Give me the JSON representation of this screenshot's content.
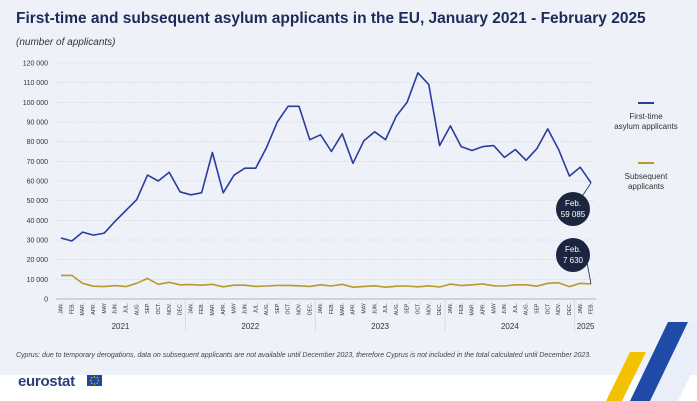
{
  "title": "First-time and subsequent asylum applicants in the EU, January 2021 - February 2025",
  "subtitle": "(number of applicants)",
  "footnote": "Cyprus: due to temporary derogations, data on subsequent applicants are not available until December 2023, therefore Cyprus is not included in the total calculated until December 2023.",
  "logo_text": "eurostat",
  "colors": {
    "first": "#2a3d9e",
    "subsequent": "#b89a2e",
    "callout": "#1c2540",
    "panel": "#eef1f8"
  },
  "chart_data": {
    "type": "line",
    "title": "First-time and subsequent asylum applicants in the EU, January 2021 - February 2025",
    "ylabel": "",
    "xlabel": "",
    "ylim": [
      0,
      120000
    ],
    "yticks": [
      "0",
      "10 000",
      "20 000",
      "30 000",
      "40 000",
      "50 000",
      "60 000",
      "70 000",
      "80 000",
      "90 000",
      "100 000",
      "110 000",
      "120 000"
    ],
    "grid": true,
    "legend_position": "right",
    "month_labels": [
      "JAN.",
      "FEB.",
      "MAR.",
      "APR.",
      "MAY",
      "JUN.",
      "JUL.",
      "AUG.",
      "SEP.",
      "OCT.",
      "NOV.",
      "DEC.",
      "JAN.",
      "FEB.",
      "MAR.",
      "APR.",
      "MAY",
      "JUN.",
      "JUL.",
      "AUG.",
      "SEP.",
      "OCT.",
      "NOV.",
      "DEC.",
      "JAN.",
      "FEB.",
      "MAR.",
      "APR.",
      "MAY",
      "JUN.",
      "JUL.",
      "AUG.",
      "SEP.",
      "OCT.",
      "NOV.",
      "DEC.",
      "JAN.",
      "FEB.",
      "MAR.",
      "APR.",
      "MAY",
      "JUN.",
      "JUL.",
      "AUG.",
      "SEP.",
      "OCT.",
      "NOV.",
      "DEC.",
      "JAN.",
      "FEB."
    ],
    "years": [
      {
        "label": "2021",
        "start": 0,
        "end": 11
      },
      {
        "label": "2022",
        "start": 12,
        "end": 23
      },
      {
        "label": "2023",
        "start": 24,
        "end": 35
      },
      {
        "label": "2024",
        "start": 36,
        "end": 47
      },
      {
        "label": "2025",
        "start": 48,
        "end": 49
      }
    ],
    "series": [
      {
        "name": "First-time asylum applicants",
        "legend_lines": [
          "First-time",
          "asylum applicants"
        ],
        "color": "#2a3d9e",
        "values": [
          31000,
          29500,
          34000,
          32500,
          33500,
          39500,
          45000,
          50500,
          63000,
          60000,
          64500,
          54500,
          53000,
          54000,
          74500,
          54000,
          63000,
          66500,
          66500,
          77000,
          90000,
          98000,
          98000,
          81000,
          83500,
          75000,
          84000,
          69000,
          80500,
          85000,
          81000,
          93000,
          100000,
          115000,
          109000,
          78000,
          88000,
          77500,
          75500,
          77500,
          78000,
          72000,
          76000,
          70500,
          76500,
          86500,
          76000,
          62500,
          67000,
          59085
        ]
      },
      {
        "name": "Subsequent applicants",
        "legend_lines": [
          "Subsequent",
          "applicants"
        ],
        "color": "#b89a2e",
        "values": [
          12000,
          12000,
          8000,
          6500,
          6300,
          6800,
          6300,
          8000,
          10500,
          7500,
          8500,
          7200,
          7300,
          7000,
          7500,
          6200,
          7000,
          7000,
          6400,
          6600,
          6900,
          6900,
          6700,
          6400,
          7200,
          6600,
          7500,
          6000,
          6400,
          6700,
          6000,
          6500,
          6600,
          6200,
          6700,
          6100,
          7600,
          6800,
          7200,
          7700,
          6700,
          6600,
          7200,
          7200,
          6500,
          8000,
          8300,
          6300,
          8000,
          7630
        ]
      }
    ],
    "annotations": [
      {
        "series": 0,
        "index": 49,
        "label_top": "Feb.",
        "label_value": "59 085"
      },
      {
        "series": 1,
        "index": 49,
        "label_top": "Feb.",
        "label_value": "7 630"
      }
    ]
  }
}
